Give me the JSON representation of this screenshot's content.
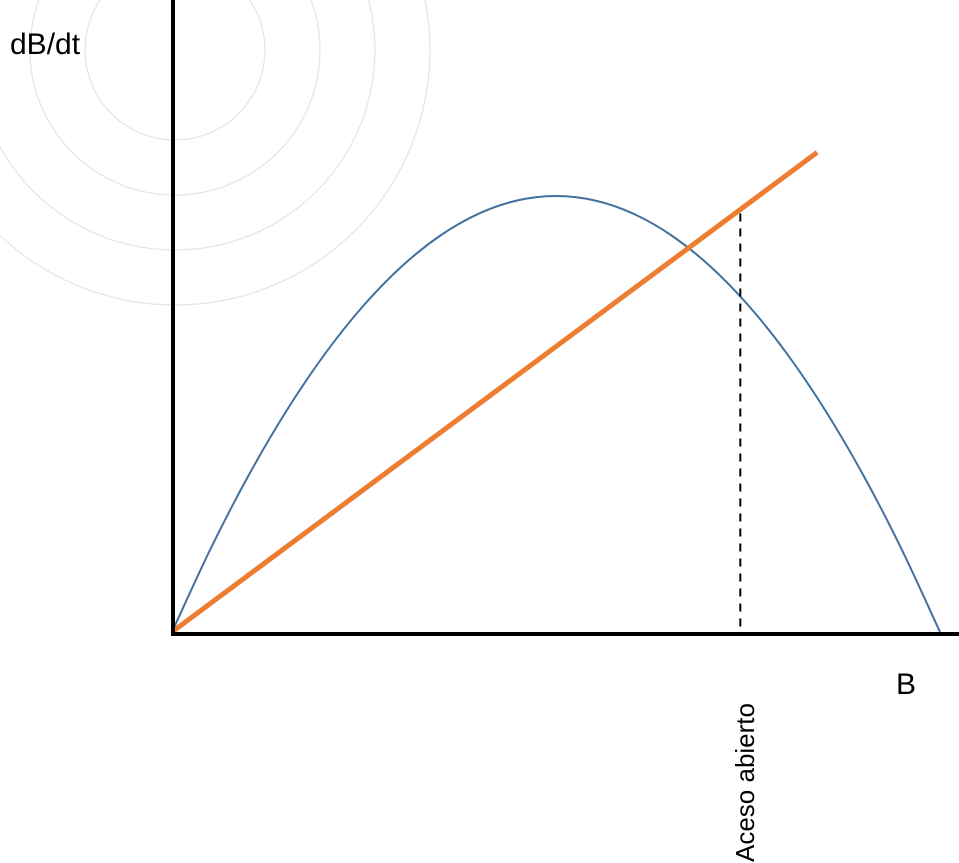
{
  "chart_data": {
    "type": "line",
    "title": "",
    "ylabel": "dB/dt",
    "xlabel": "B",
    "xlim": [
      0,
      1
    ],
    "ylim": [
      0,
      1
    ],
    "grid": false,
    "legend": "none",
    "series": [
      {
        "color": "#41719c",
        "x": [
          0,
          0.05,
          0.1,
          0.15,
          0.2,
          0.25,
          0.3,
          0.35,
          0.4,
          0.45,
          0.5,
          0.55,
          0.6,
          0.65,
          0.7,
          0.75,
          0.8,
          0.85,
          0.9,
          0.95,
          1.0
        ],
        "y": [
          0,
          0.19,
          0.36,
          0.51,
          0.64,
          0.75,
          0.84,
          0.91,
          0.96,
          0.99,
          1.0,
          0.99,
          0.96,
          0.91,
          0.84,
          0.75,
          0.64,
          0.51,
          0.36,
          0.19,
          0
        ]
      },
      {
        "color": "#ed7d31",
        "x": [
          0,
          0.84
        ],
        "y": [
          0,
          1.1
        ]
      }
    ],
    "annotations": [
      {
        "text": "Aceso abierto",
        "x": 0.74,
        "y": 0.96,
        "style": "dashed-vertical",
        "orientation": "vertical"
      }
    ]
  },
  "colors": {
    "axis": "#000000",
    "curve": "#41719c",
    "line": "#ed7d31",
    "decor_circles": "#e4e4e4"
  }
}
